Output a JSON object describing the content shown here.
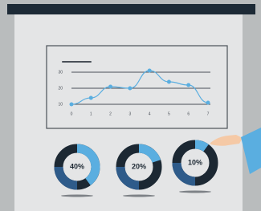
{
  "chart_data": [
    {
      "type": "line",
      "x": [
        0,
        1,
        2,
        3,
        4,
        5,
        6,
        7
      ],
      "values": [
        10,
        14,
        21,
        20,
        31,
        24,
        22,
        11
      ],
      "color": "#5aaee0",
      "xlim": [
        0,
        7
      ],
      "xticks": [
        0,
        1,
        2,
        3,
        4,
        5,
        6,
        7
      ],
      "ylim": [
        5,
        35
      ],
      "yticks": [
        10,
        20,
        30
      ],
      "grid": true
    },
    {
      "type": "donut",
      "values": [
        40
      ],
      "value_labels": [
        "40%"
      ],
      "color": "#5aaee0"
    },
    {
      "type": "donut",
      "values": [
        20
      ],
      "value_labels": [
        "20%"
      ],
      "color": "#5aaee0"
    },
    {
      "type": "donut",
      "values": [
        10
      ],
      "value_labels": [
        "10%"
      ],
      "color": "#5aaee0"
    }
  ]
}
